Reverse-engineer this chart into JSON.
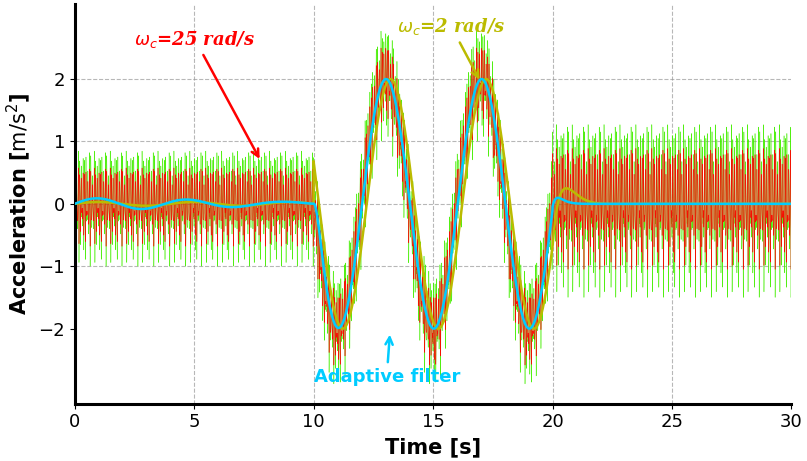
{
  "xlabel": "Time [s]",
  "ylabel": "Acceleration [$\\mathrm{m/s^2}$]",
  "xlim": [
    0,
    30
  ],
  "ylim": [
    -3.2,
    3.2
  ],
  "yticks": [
    -2,
    -1,
    0,
    1,
    2
  ],
  "xticks": [
    0,
    5,
    10,
    15,
    20,
    25,
    30
  ],
  "grid_color": "#999999",
  "bg_color": "#ffffff",
  "color_green": "#44ee00",
  "color_red": "#ff0000",
  "color_yellow": "#bbbb00",
  "color_cyan": "#00ccff",
  "t_total": 30,
  "fs": 800,
  "s1e": 10,
  "s2e": 20,
  "noise_amp_red_s1": 0.68,
  "noise_amp_green_s1": 1.0,
  "noise_amp_red_s3": 1.05,
  "noise_amp_green_s3": 1.5,
  "signal_amp": 2.0,
  "signal_freq": 0.25,
  "noise_freq": 15.0,
  "omega_c25_label": "$\\omega_c$=25 rad/s",
  "omega_c2_label": "$\\omega_c$=2 rad/s",
  "adaptive_label": "Adaptive filter",
  "annot_fontsize": 13,
  "axis_label_fontsize": 15,
  "tick_fontsize": 13
}
